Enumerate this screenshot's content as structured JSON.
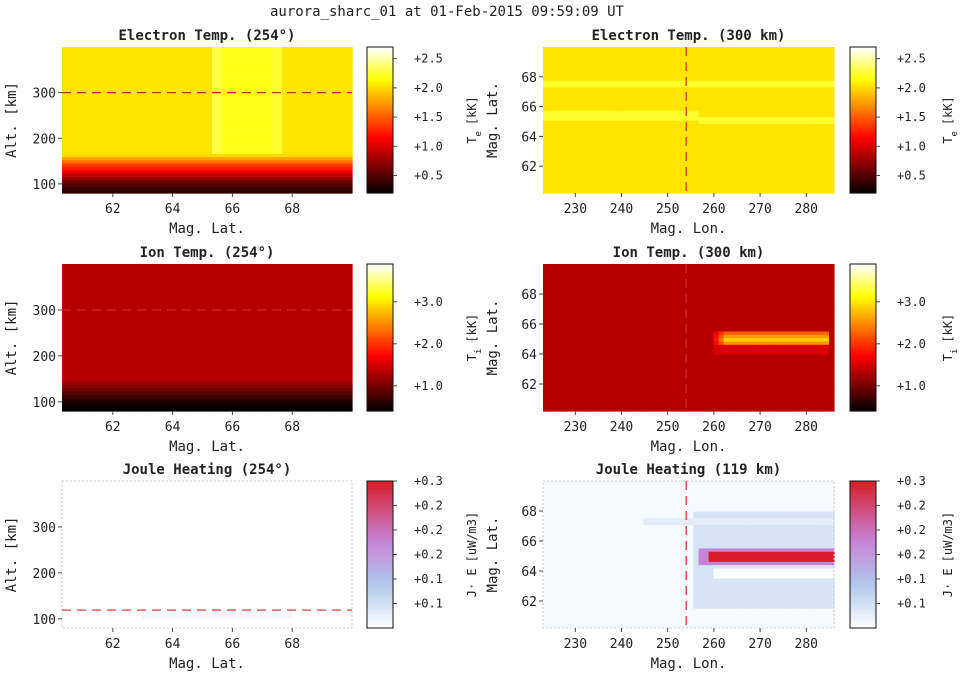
{
  "figure_title": "aurora_sharc_01 at 01-Feb-2015 09:59:09 UT",
  "chart_data": [
    {
      "type": "heatmap",
      "title": "Electron Temp. (254°)",
      "xlabel": "Mag. Lat.",
      "ylabel": "Alt. [km]",
      "xlim": [
        60.3,
        70.0
      ],
      "ylim": [
        80,
        400
      ],
      "xticks": [
        62,
        64,
        66,
        68
      ],
      "yticks": [
        100,
        200,
        300
      ],
      "cut_line": {
        "orientation": "horizontal",
        "value": 300
      },
      "colormap": "hot",
      "colorbar": {
        "label": "Te [kK]",
        "label_main": "T",
        "label_sub": "e",
        "label_unit": "[kK]",
        "range": [
          0.2,
          2.7
        ],
        "ticks": [
          0.5,
          1.0,
          1.5,
          2.0,
          2.5
        ],
        "tick_labels": [
          "+0.5",
          "+1.0",
          "+1.5",
          "+2.0",
          "+2.5"
        ]
      }
    },
    {
      "type": "heatmap",
      "title": "Electron Temp. (300 km)",
      "xlabel": "Mag. Lon.",
      "ylabel": "Mag. Lat.",
      "xlim": [
        223,
        286
      ],
      "ylim": [
        60.2,
        70.0
      ],
      "xticks": [
        230,
        240,
        250,
        260,
        270,
        280
      ],
      "yticks": [
        62,
        64,
        66,
        68
      ],
      "cut_line": {
        "orientation": "vertical",
        "value": 254
      },
      "colormap": "hot",
      "colorbar": {
        "label": "Te [kK]",
        "label_main": "T",
        "label_sub": "e",
        "label_unit": "[kK]",
        "range": [
          0.2,
          2.7
        ],
        "ticks": [
          0.5,
          1.0,
          1.5,
          2.0,
          2.5
        ],
        "tick_labels": [
          "+0.5",
          "+1.0",
          "+1.5",
          "+2.0",
          "+2.5"
        ]
      }
    },
    {
      "type": "heatmap",
      "title": "Ion Temp. (254°)",
      "xlabel": "Mag. Lat.",
      "ylabel": "Alt. [km]",
      "xlim": [
        60.3,
        70.0
      ],
      "ylim": [
        80,
        400
      ],
      "xticks": [
        62,
        64,
        66,
        68
      ],
      "yticks": [
        100,
        200,
        300
      ],
      "cut_line": {
        "orientation": "horizontal",
        "value": 300
      },
      "colormap": "hot",
      "colorbar": {
        "label": "Ti [kK]",
        "label_main": "T",
        "label_sub": "i",
        "label_unit": "[kK]",
        "range": [
          0.4,
          3.9
        ],
        "ticks": [
          1.0,
          2.0,
          3.0
        ],
        "tick_labels": [
          "+1.0",
          "+2.0",
          "+3.0"
        ]
      }
    },
    {
      "type": "heatmap",
      "title": "Ion Temp. (300 km)",
      "xlabel": "Mag. Lon.",
      "ylabel": "Mag. Lat.",
      "xlim": [
        223,
        286
      ],
      "ylim": [
        60.2,
        70.0
      ],
      "xticks": [
        230,
        240,
        250,
        260,
        270,
        280
      ],
      "yticks": [
        62,
        64,
        66,
        68
      ],
      "cut_line": {
        "orientation": "vertical",
        "value": 254
      },
      "colormap": "hot",
      "colorbar": {
        "label": "Ti [kK]",
        "label_main": "T",
        "label_sub": "i",
        "label_unit": "[kK]",
        "range": [
          0.4,
          3.9
        ],
        "ticks": [
          1.0,
          2.0,
          3.0
        ],
        "tick_labels": [
          "+1.0",
          "+2.0",
          "+3.0"
        ]
      }
    },
    {
      "type": "heatmap",
      "title": "Joule Heating (254°)",
      "xlabel": "Mag. Lat.",
      "ylabel": "Alt. [km]",
      "xlim": [
        60.3,
        70.0
      ],
      "ylim": [
        80,
        400
      ],
      "xticks": [
        62,
        64,
        66,
        68
      ],
      "yticks": [
        100,
        200,
        300
      ],
      "cut_line": {
        "orientation": "horizontal",
        "value": 119
      },
      "colormap": "white-blue-purple-red",
      "colorbar": {
        "label": "J·E [uW/m3]",
        "label_main": "J· E",
        "label_sub": "",
        "label_unit": "[uW/m3]",
        "range": [
          0.0,
          0.3
        ],
        "ticks": [
          0.05,
          0.1,
          0.15,
          0.2,
          0.25,
          0.3
        ],
        "tick_labels": [
          "+0.1",
          "+0.1",
          "+0.2",
          "+0.2",
          "+0.2",
          "+0.3"
        ]
      }
    },
    {
      "type": "heatmap",
      "title": "Joule Heating (119 km)",
      "xlabel": "Mag. Lon.",
      "ylabel": "Mag. Lat.",
      "xlim": [
        223,
        286
      ],
      "ylim": [
        60.2,
        70.0
      ],
      "xticks": [
        230,
        240,
        250,
        260,
        270,
        280
      ],
      "yticks": [
        62,
        64,
        66,
        68
      ],
      "cut_line": {
        "orientation": "vertical",
        "value": 254
      },
      "colormap": "white-blue-purple-red",
      "colorbar": {
        "label": "J·E [uW/m3]",
        "label_main": "J· E",
        "label_sub": "",
        "label_unit": "[uW/m3]",
        "range": [
          0.0,
          0.3
        ],
        "ticks": [
          0.05,
          0.1,
          0.15,
          0.2,
          0.25,
          0.3
        ],
        "tick_labels": [
          "+0.1",
          "+0.1",
          "+0.2",
          "+0.2",
          "+0.2",
          "+0.3"
        ]
      }
    }
  ]
}
